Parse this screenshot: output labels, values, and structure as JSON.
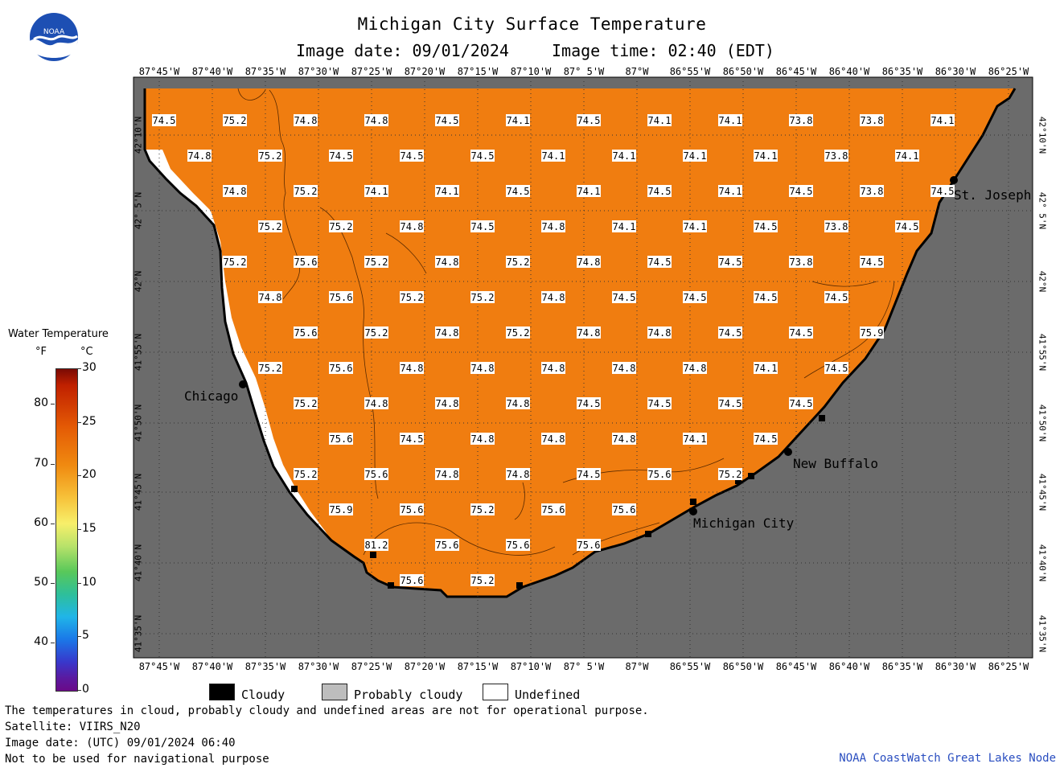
{
  "header": {
    "title": "Michigan City Surface Temperature",
    "image_date": "Image date: 09/01/2024",
    "image_time": "Image time: 02:40 (EDT)"
  },
  "logo": {
    "text": "NOAA",
    "icon": "noaa-logo-icon"
  },
  "map": {
    "lon_labels": [
      "87°45'W",
      "87°40'W",
      "87°35'W",
      "87°30'W",
      "87°25'W",
      "87°20'W",
      "87°15'W",
      "87°10'W",
      "87° 5'W",
      "87°W",
      "86°55'W",
      "86°50'W",
      "86°45'W",
      "86°40'W",
      "86°35'W",
      "86°30'W",
      "86°25'W"
    ],
    "lat_labels": [
      "42°10'N",
      "42° 5'N",
      "42°N",
      "41°55'N",
      "41°50'N",
      "41°45'N",
      "41°40'N",
      "41°35'N"
    ],
    "colors": {
      "water": "#f07d10",
      "land": "#6b6b6b",
      "undefined": "#ffffff",
      "coast": "#000000"
    },
    "cities": [
      {
        "name": "Chicago"
      },
      {
        "name": "St. Joseph"
      },
      {
        "name": "New Buffalo"
      },
      {
        "name": "Michigan City"
      }
    ],
    "temperatures": [
      [
        "74.5",
        "75.2",
        "74.8",
        "74.8",
        "74.5",
        "74.1",
        "74.5",
        "74.1",
        "74.1",
        "73.8",
        "73.8",
        "74.1"
      ],
      [
        "74.8",
        "75.2",
        "74.5",
        "74.5",
        "74.5",
        "74.1",
        "74.1",
        "74.1",
        "74.1",
        "73.8",
        "74.1"
      ],
      [
        "74.8",
        "75.2",
        "74.1",
        "74.1",
        "74.5",
        "74.1",
        "74.5",
        "74.1",
        "74.5",
        "73.8",
        "74.5"
      ],
      [
        "75.2",
        "75.2",
        "74.8",
        "74.5",
        "74.8",
        "74.1",
        "74.1",
        "74.5",
        "73.8",
        "74.5"
      ],
      [
        "75.2",
        "75.6",
        "75.2",
        "74.8",
        "75.2",
        "74.8",
        "74.5",
        "74.5",
        "73.8",
        "74.5"
      ],
      [
        "74.8",
        "75.6",
        "75.2",
        "75.2",
        "74.8",
        "74.5",
        "74.5",
        "74.5",
        "74.5"
      ],
      [
        "75.6",
        "75.2",
        "74.8",
        "75.2",
        "74.8",
        "74.8",
        "74.5",
        "74.5",
        "75.9"
      ],
      [
        "75.2",
        "75.6",
        "74.8",
        "74.8",
        "74.8",
        "74.8",
        "74.8",
        "74.1",
        "74.5"
      ],
      [
        "75.2",
        "74.8",
        "74.8",
        "74.8",
        "74.5",
        "74.5",
        "74.5",
        "74.5"
      ],
      [
        "75.6",
        "74.5",
        "74.8",
        "74.8",
        "74.8",
        "74.1",
        "74.5"
      ],
      [
        "75.2",
        "75.6",
        "74.8",
        "74.8",
        "74.5",
        "75.6",
        "75.2"
      ],
      [
        "75.9",
        "75.6",
        "75.2",
        "75.6",
        "75.6"
      ],
      [
        "81.2",
        "75.6",
        "75.6",
        "75.6"
      ],
      [
        "75.6",
        "75.2"
      ]
    ]
  },
  "legend": {
    "title": "Water Temperature",
    "unit_f": "°F",
    "unit_c": "°C",
    "f_ticks": [
      "80",
      "70",
      "60",
      "50",
      "40"
    ],
    "c_ticks": [
      "30",
      "25",
      "20",
      "15",
      "10",
      "5",
      "0"
    ],
    "range_c": [
      0,
      30
    ],
    "categories": [
      {
        "label": "Cloudy",
        "color": "#000000"
      },
      {
        "label": "Probably cloudy",
        "color": "#bdbdbd"
      },
      {
        "label": "Undefined",
        "color": "#ffffff"
      }
    ]
  },
  "footer": {
    "disclaimer": "The temperatures in cloud, probably cloudy and undefined areas are not for operational purpose.",
    "satellite": "Satellite: VIIRS_N20",
    "utc_date": "Image date: (UTC) 09/01/2024  06:40",
    "navigation": "Not to be used for navigational purpose",
    "credit": "NOAA CoastWatch Great Lakes Node"
  }
}
